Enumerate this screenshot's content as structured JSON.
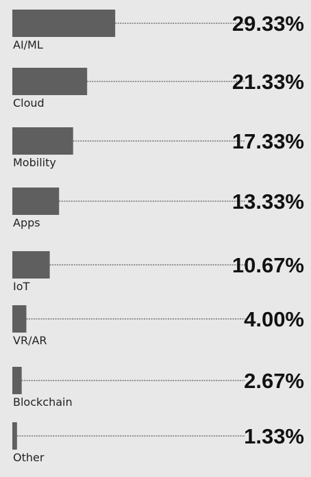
{
  "chart_data": {
    "type": "bar",
    "orientation": "horizontal",
    "categories": [
      "AI/ML",
      "Cloud",
      "Mobility",
      "Apps",
      "IoT",
      "VR/AR",
      "Blockchain",
      "Other"
    ],
    "values": [
      29.33,
      21.33,
      17.33,
      13.33,
      10.67,
      4.0,
      2.67,
      1.33
    ],
    "value_labels": [
      "29.33%",
      "21.33%",
      "17.33%",
      "13.33%",
      "10.67%",
      "4.00%",
      "2.67%",
      "1.33%"
    ],
    "unit": "%",
    "grid": false,
    "legend": "none",
    "bar_color": "#5f5f5f",
    "background_color": "#e8e8e8"
  }
}
